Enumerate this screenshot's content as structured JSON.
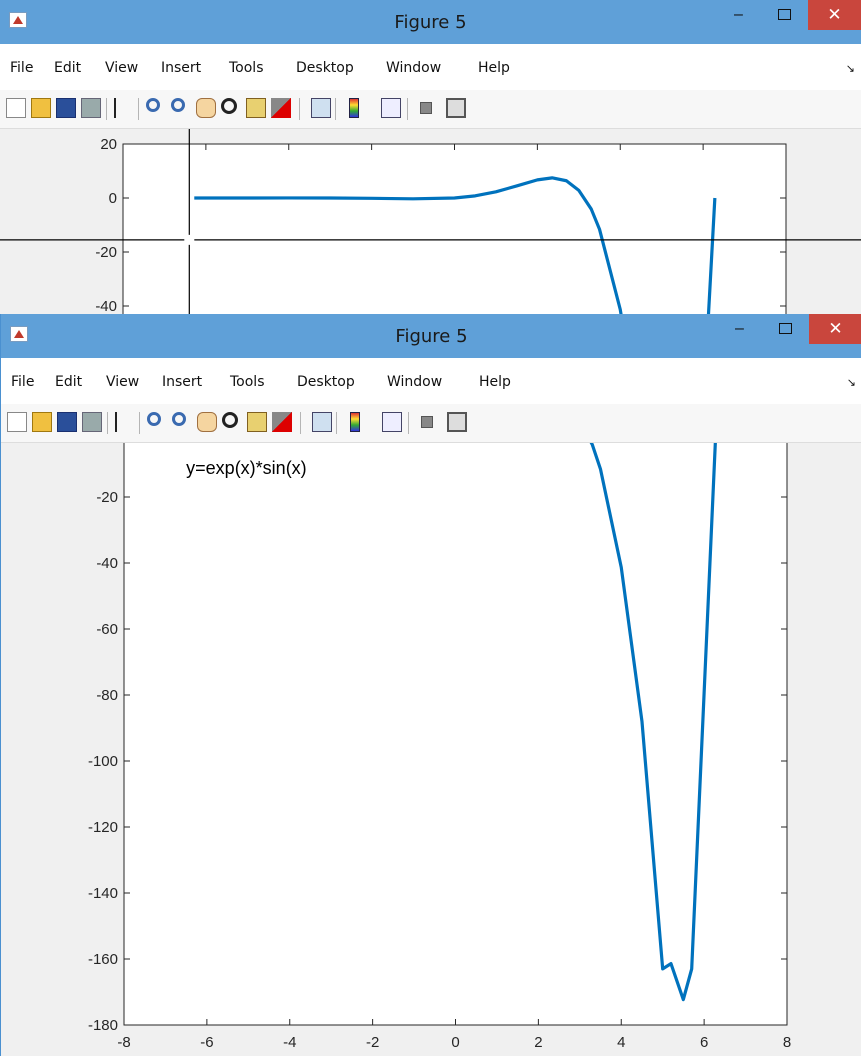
{
  "windows": [
    {
      "title": "Figure 5",
      "menu": [
        "File",
        "Edit",
        "View",
        "Insert",
        "Tools",
        "Desktop",
        "Window",
        "Help"
      ]
    },
    {
      "title": "Figure 5",
      "menu": [
        "File",
        "Edit",
        "View",
        "Insert",
        "Tools",
        "Desktop",
        "Window",
        "Help"
      ]
    }
  ],
  "toolbar_icons": [
    "new-figure-icon",
    "open-file-icon",
    "save-icon",
    "print-icon",
    "edit-plot-arrow-icon",
    "zoom-in-icon",
    "zoom-out-icon",
    "pan-hand-icon",
    "rotate-3d-icon",
    "data-cursor-icon",
    "brush-icon",
    "link-plot-icon",
    "colorbar-icon",
    "legend-icon",
    "hide-plot-tools-icon",
    "show-plot-tools-icon"
  ],
  "chart_data": {
    "type": "line",
    "series": [
      {
        "x": [
          -6.28,
          -5,
          -4,
          -3,
          -2,
          -1,
          0,
          0.5,
          1,
          1.5,
          2,
          2.3562,
          2.7,
          3,
          3.3,
          3.5,
          4,
          4.5,
          5,
          5.2,
          5.4978,
          5.7,
          6,
          6.2832
        ],
        "y": [
          0,
          0.0064,
          0.0139,
          -0.007,
          -0.123,
          -0.31,
          0,
          0.79,
          2.29,
          4.47,
          6.72,
          7.46,
          6.39,
          2.83,
          -4.1,
          -11.6,
          -41.3,
          -88,
          -163,
          -161.4,
          -172.3,
          -163,
          -79.3,
          0
        ]
      }
    ],
    "annotations": [
      {
        "text": "y=exp(x)*sin(x)",
        "x": -6.5,
        "y": -13
      }
    ],
    "xlim": [
      -8,
      8
    ],
    "ylim": [
      -180,
      20
    ],
    "xticks": [
      -8,
      -6,
      -4,
      -2,
      0,
      2,
      4,
      6,
      8
    ],
    "yticks": [
      20,
      0,
      -20,
      -40,
      -60,
      -80,
      -100,
      -120,
      -140,
      -160,
      -180
    ],
    "line_color": "#0072bd"
  },
  "zoom_view": {
    "yticks": [
      20,
      0,
      -20,
      -40
    ],
    "crosshair": {
      "x": -6.4,
      "y": -15.5
    }
  }
}
